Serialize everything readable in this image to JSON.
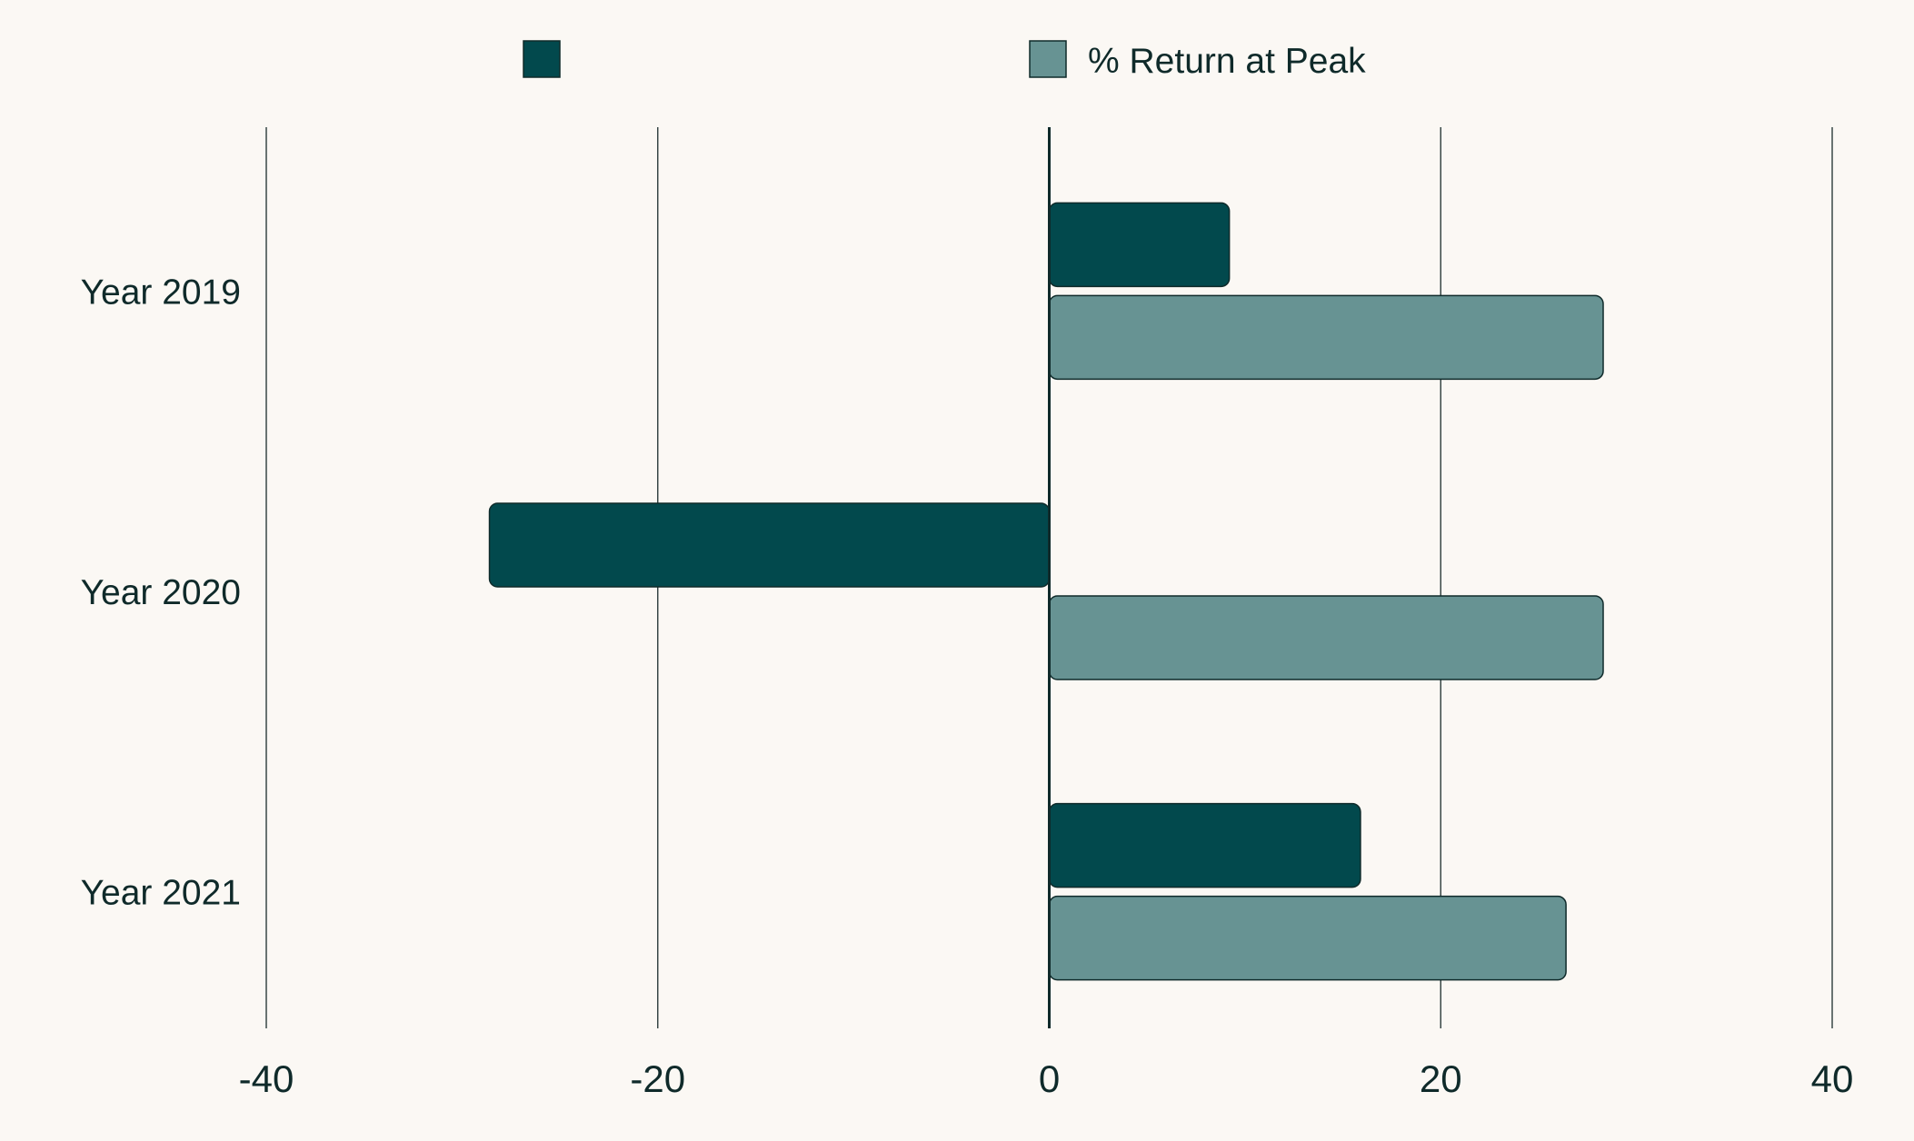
{
  "chart_data": {
    "type": "bar",
    "orientation": "horizontal",
    "categories": [
      "Year 2019",
      "Year 2020",
      "Year 2021"
    ],
    "series": [
      {
        "values": [
          9.2,
          -28.6,
          15.9
        ],
        "color": "#02494d"
      },
      {
        "name": "% Return at Peak",
        "values": [
          28.3,
          28.3,
          26.4
        ],
        "color": "#679393"
      }
    ],
    "xticks": [
      -40,
      -20,
      0,
      20,
      40
    ],
    "tick_labels": [
      "-40",
      "-20",
      "0",
      "20",
      "40"
    ],
    "xlim": [
      -40,
      40
    ],
    "grid": "vertical",
    "legend_position": "top-center",
    "background": "#fbf8f4",
    "gridline_color": "#2b3b3b"
  }
}
